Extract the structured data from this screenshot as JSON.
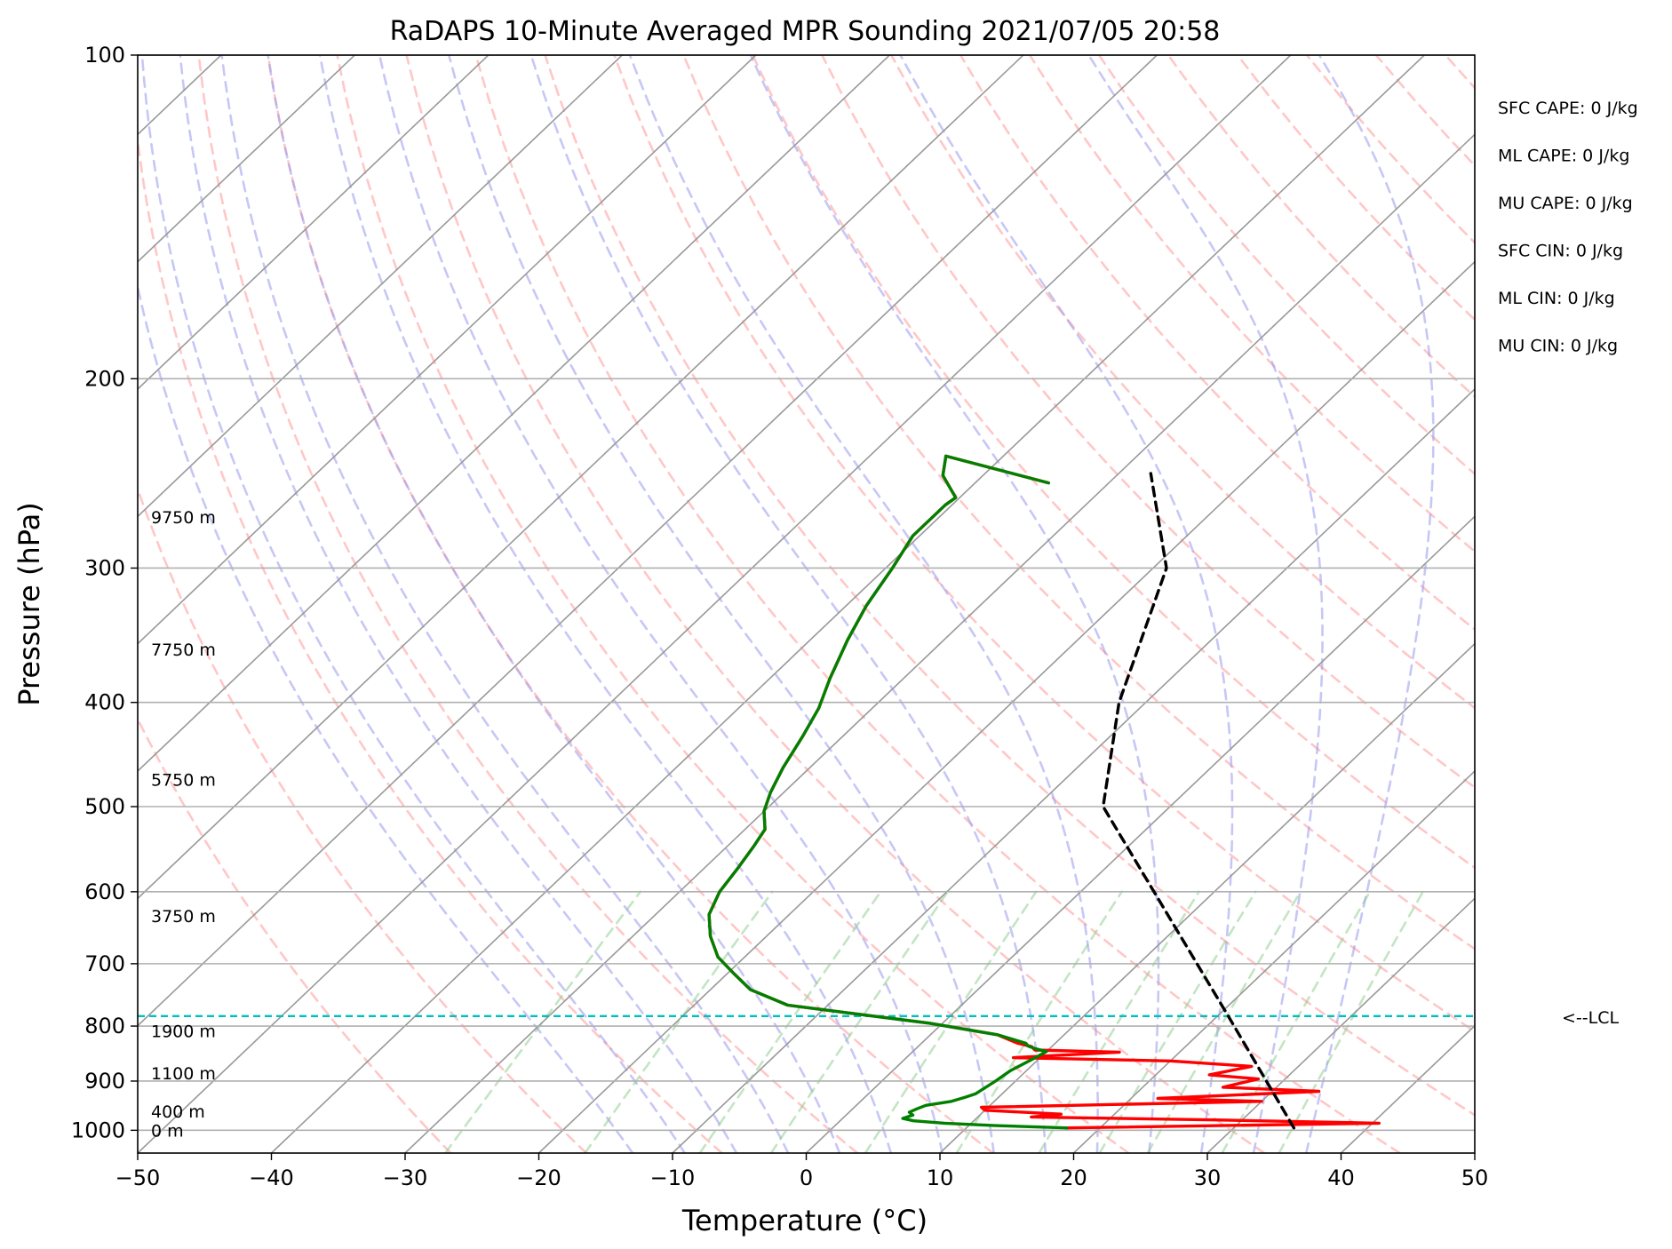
{
  "chart_data": {
    "type": "line",
    "title": "RaDAPS 10-Minute Averaged MPR Sounding 2021/07/05 20:58",
    "xlabel": "Temperature (°C)",
    "ylabel": "Pressure (hPa)",
    "xlim": [
      -50,
      50
    ],
    "ylim": [
      1050,
      100
    ],
    "y_scale": "log",
    "skew": "skew-T log-P",
    "grid": true,
    "xticks": [
      -50,
      -40,
      -30,
      -20,
      -10,
      0,
      10,
      20,
      30,
      40,
      50
    ],
    "yticks": [
      100,
      200,
      300,
      400,
      500,
      600,
      700,
      800,
      900,
      1000
    ],
    "series": [
      {
        "role": "temperature",
        "color": "#ff0000",
        "points": [
          [
            17.5,
            995
          ],
          [
            40.5,
            985
          ],
          [
            28,
            978
          ],
          [
            14,
            972
          ],
          [
            16,
            966
          ],
          [
            10,
            958
          ],
          [
            9.5,
            952
          ],
          [
            30,
            940
          ],
          [
            22,
            934
          ],
          [
            33.5,
            920
          ],
          [
            26,
            912
          ],
          [
            28,
            896
          ],
          [
            24,
            888
          ],
          [
            26.5,
            872
          ],
          [
            20,
            862
          ],
          [
            8,
            856
          ],
          [
            15.5,
            846
          ],
          [
            9,
            842
          ],
          [
            8.5,
            836
          ],
          [
            7.2,
            830
          ],
          [
            5,
            815
          ],
          [
            -1,
            795
          ],
          [
            -7,
            780
          ],
          [
            -13,
            765
          ],
          [
            -17,
            740
          ],
          [
            -19.5,
            715
          ],
          [
            -22,
            690
          ],
          [
            -24.2,
            660
          ],
          [
            -26,
            630
          ],
          [
            -27,
            600
          ],
          [
            -27.5,
            570
          ],
          [
            -28,
            545
          ],
          [
            -28.5,
            525
          ],
          [
            -30,
            505
          ],
          [
            -31,
            485
          ],
          [
            -32,
            460
          ],
          [
            -33,
            430
          ],
          [
            -34,
            405
          ],
          [
            -35.5,
            380
          ],
          [
            -37.2,
            350
          ],
          [
            -38.5,
            325
          ],
          [
            -39.5,
            300
          ],
          [
            -40.5,
            280
          ],
          [
            -40.5,
            268
          ],
          [
            -40.5,
            262
          ],
          [
            -40.3,
            258
          ],
          [
            -43,
            246
          ],
          [
            -44.3,
            236
          ],
          [
            -34.5,
            250
          ]
        ]
      },
      {
        "role": "dewpoint",
        "color": "#008000",
        "points": [
          [
            17.5,
            995
          ],
          [
            12,
            990
          ],
          [
            8,
            985
          ],
          [
            5.5,
            980
          ],
          [
            4.5,
            975
          ],
          [
            5,
            968
          ],
          [
            4.5,
            962
          ],
          [
            4.8,
            955
          ],
          [
            5.2,
            948
          ],
          [
            6.8,
            940
          ],
          [
            7.5,
            932
          ],
          [
            8,
            925
          ],
          [
            8.2,
            915
          ],
          [
            8.5,
            900
          ],
          [
            8.8,
            880
          ],
          [
            9.5,
            860
          ],
          [
            10,
            845
          ],
          [
            9,
            840
          ],
          [
            8.2,
            835
          ],
          [
            7.8,
            830
          ],
          [
            5,
            815
          ],
          [
            -1,
            795
          ],
          [
            -7,
            780
          ],
          [
            -13,
            765
          ],
          [
            -17,
            740
          ],
          [
            -19.5,
            715
          ],
          [
            -22,
            690
          ],
          [
            -24.2,
            660
          ],
          [
            -26,
            630
          ],
          [
            -27,
            600
          ],
          [
            -27.5,
            570
          ],
          [
            -28,
            545
          ],
          [
            -28.5,
            525
          ],
          [
            -30,
            505
          ],
          [
            -31,
            485
          ],
          [
            -32,
            460
          ],
          [
            -33,
            430
          ],
          [
            -34,
            405
          ],
          [
            -35.5,
            380
          ],
          [
            -37.2,
            350
          ],
          [
            -38.5,
            325
          ],
          [
            -39.5,
            300
          ],
          [
            -40.5,
            280
          ],
          [
            -40.5,
            268
          ],
          [
            -40.5,
            262
          ],
          [
            -40.3,
            258
          ],
          [
            -43,
            246
          ],
          [
            -44.3,
            236
          ],
          [
            -34.5,
            250
          ]
        ]
      },
      {
        "role": "parcel profile",
        "color": "#000000",
        "points": [
          [
            34.5,
            995
          ],
          [
            20.8,
            783
          ],
          [
            -5,
            500
          ],
          [
            -12,
            400
          ],
          [
            -19,
            300
          ],
          [
            -27.6,
            245
          ]
        ]
      }
    ],
    "lcl": {
      "pressure": 783,
      "label": "<--LCL",
      "color": "#00bfbf"
    },
    "height_labels": [
      {
        "text": "0 m",
        "p": 1000
      },
      {
        "text": "400 m",
        "p": 960
      },
      {
        "text": "1100 m",
        "p": 885
      },
      {
        "text": "1900 m",
        "p": 808
      },
      {
        "text": "3750 m",
        "p": 632
      },
      {
        "text": "5750 m",
        "p": 472
      },
      {
        "text": "7750 m",
        "p": 357
      },
      {
        "text": "9750 m",
        "p": 269
      }
    ],
    "stats": [
      "SFC CAPE: 0 J/kg",
      "ML CAPE: 0 J/kg",
      "MU CAPE: 0 J/kg",
      "SFC CIN: 0 J/kg",
      "ML CIN: 0 J/kg",
      "MU CIN: 0 J/kg"
    ],
    "colors": {
      "isotherms": "#999999",
      "dry_adiabats": "#ff9999",
      "moist_adiabats": "#9999ee",
      "mixing_ratio": "#88cc88"
    }
  }
}
